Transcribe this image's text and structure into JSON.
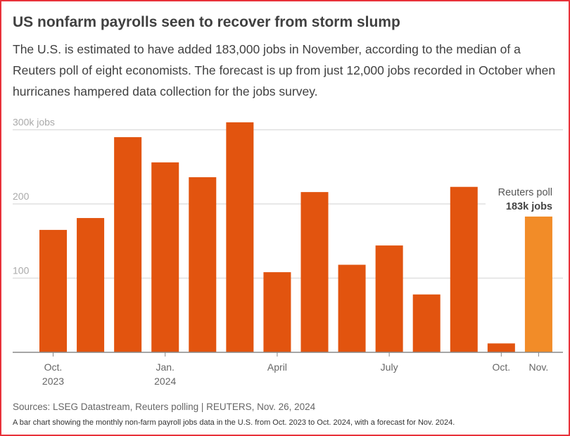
{
  "title": "US nonfarm payrolls seen to recover from storm slump",
  "subtitle": "The U.S. is estimated to have added 183,000 jobs in November, according to the median of a Reuters poll of eight economists. The forecast is up from just 12,000 jobs recorded in October when hurricanes hampered data collection for the jobs survey.",
  "source": "Sources: LSEG Datastream, Reuters polling | REUTERS, Nov. 26, 2024",
  "caption": "A bar chart showing the monthly non-farm payroll jobs data in the U.S. from Oct. 2023 to Oct. 2024, with a forecast for Nov. 2024.",
  "chart_data": {
    "type": "bar",
    "categories": [
      "Oct. 2023",
      "Nov. 2023",
      "Dec. 2023",
      "Jan. 2024",
      "Feb. 2024",
      "Mar. 2024",
      "Apr. 2024",
      "May 2024",
      "Jun. 2024",
      "Jul. 2024",
      "Aug. 2024",
      "Sep. 2024",
      "Oct. 2024",
      "Nov. 2024"
    ],
    "values": [
      165,
      181,
      290,
      256,
      236,
      310,
      108,
      216,
      118,
      144,
      78,
      223,
      12,
      183
    ],
    "unit": "thousand jobs",
    "ylim": [
      0,
      300
    ],
    "yticks": [
      {
        "value": 100,
        "label": "100"
      },
      {
        "value": 200,
        "label": "200"
      },
      {
        "value": 300,
        "label": "300k jobs"
      }
    ],
    "xticks": [
      {
        "index": 0,
        "label": [
          "Oct.",
          "2023"
        ]
      },
      {
        "index": 3,
        "label": [
          "Jan.",
          "2024"
        ]
      },
      {
        "index": 6,
        "label": [
          "April"
        ]
      },
      {
        "index": 9,
        "label": [
          "July"
        ]
      },
      {
        "index": 12,
        "label": [
          "Oct."
        ]
      },
      {
        "index": 13,
        "label": [
          "Nov."
        ]
      }
    ],
    "grid": true,
    "colors": {
      "actual": "#e2540f",
      "forecast": "#f28c28"
    },
    "forecast_index": 13,
    "annotation": {
      "line1": "Reuters poll",
      "line2": "183k jobs"
    }
  }
}
